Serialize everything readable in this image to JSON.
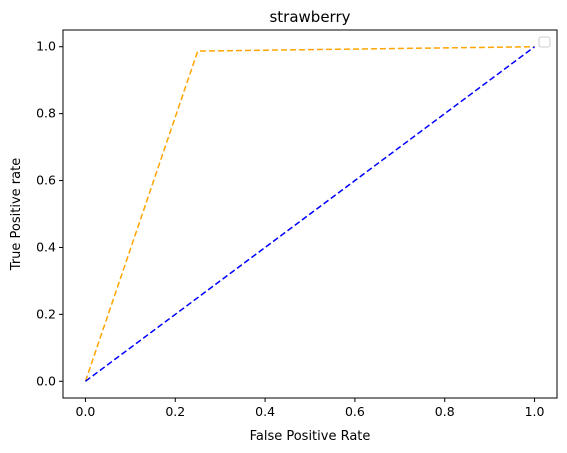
{
  "chart_data": {
    "type": "line",
    "title": "strawberry",
    "xlabel": "False Positive Rate",
    "ylabel": "True Positive rate",
    "xlim": [
      -0.05,
      1.05
    ],
    "ylim": [
      -0.05,
      1.05
    ],
    "xticks": [
      0.0,
      0.2,
      0.4,
      0.6,
      0.8,
      1.0
    ],
    "xtick_labels": [
      "0.0",
      "0.2",
      "0.4",
      "0.6",
      "0.8",
      "1.0"
    ],
    "yticks": [
      0.0,
      0.2,
      0.4,
      0.6,
      0.8,
      1.0
    ],
    "ytick_labels": [
      "0.0",
      "0.2",
      "0.4",
      "0.6",
      "0.8",
      "1.0"
    ],
    "grid": false,
    "legend": {
      "placement": "top-right",
      "entries": []
    },
    "series": [
      {
        "x": [
          0.0,
          0.25,
          1.0
        ],
        "y": [
          0.0,
          0.987,
          1.0
        ],
        "color": "#FFA500",
        "style": "dashed"
      },
      {
        "x": [
          0.0,
          1.0
        ],
        "y": [
          0.0,
          1.0
        ],
        "color": "#0000FF",
        "style": "dashed"
      }
    ]
  }
}
